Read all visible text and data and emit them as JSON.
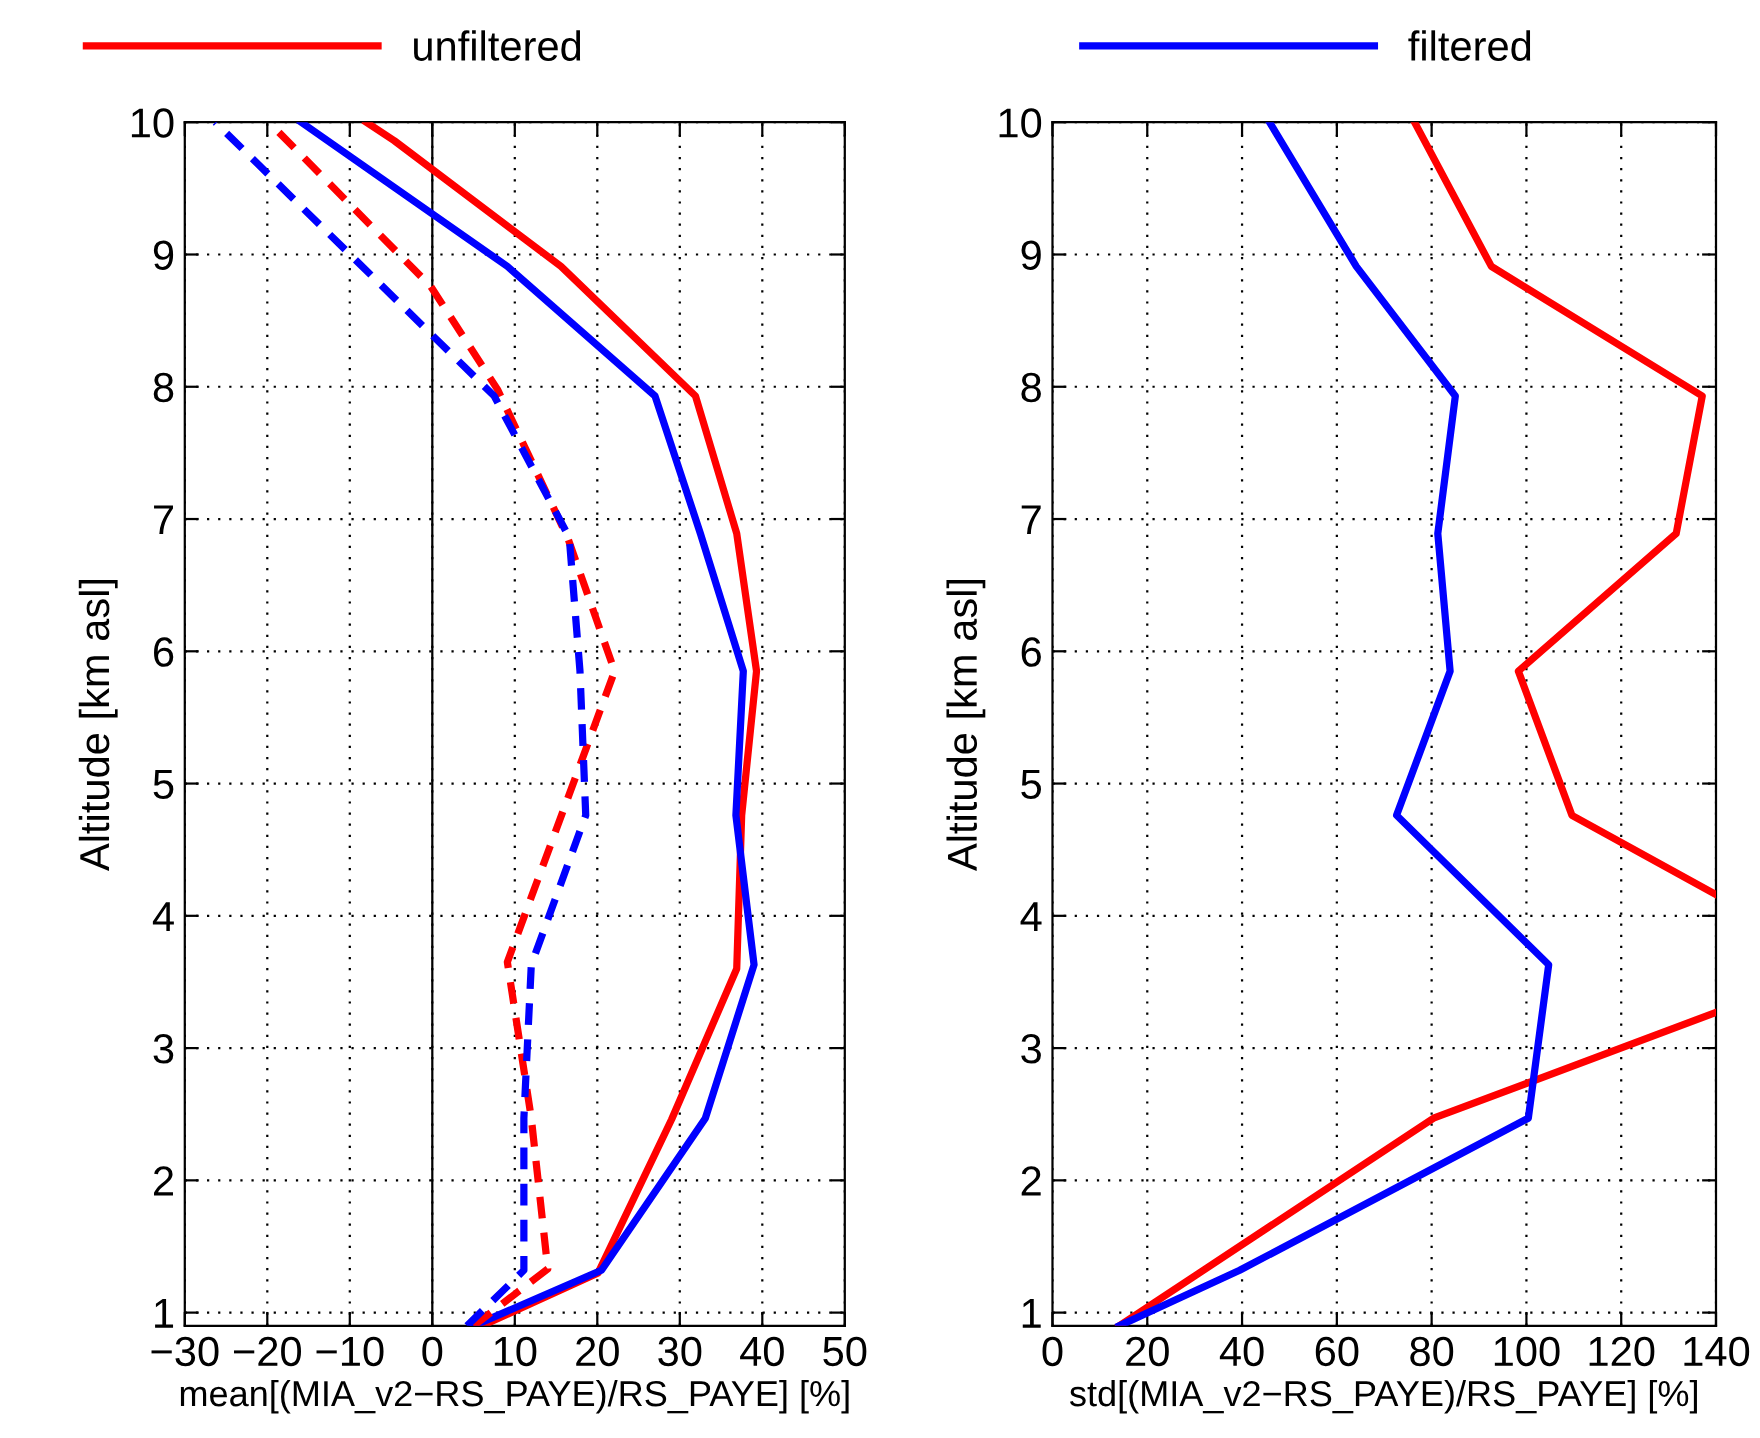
{
  "chart_data": [
    {
      "type": "line",
      "xlabel": "mean[(MIA_v2−RS_PAYE)/RS_PAYE] [%]",
      "ylabel": "Altitude [km asl]",
      "xlim": [
        -30,
        50
      ],
      "xticks": [
        {
          "value": -30,
          "label": "−30"
        },
        {
          "value": -20,
          "label": "−20"
        },
        {
          "value": -10,
          "label": "−10"
        },
        0,
        10,
        20,
        30,
        40,
        50
      ],
      "ylim": [
        0.9,
        10
      ],
      "yticks": [
        1,
        2,
        3,
        4,
        5,
        6,
        7,
        8,
        9,
        10
      ],
      "grid": true,
      "legend": "top",
      "line_style": "solid",
      "ref_lines": [
        {
          "axis": "x",
          "value": 0,
          "color": "#000000"
        }
      ],
      "series": [
        {
          "name": "unfiltered",
          "color": "#ff0000",
          "line_style": "solid",
          "x": [
            6,
            20.1,
            29.0,
            36.9,
            37.5,
            39.3,
            36.9,
            31.9,
            15.6,
            -4.6,
            -8.0
          ],
          "values": [
            0.9,
            1.3,
            2.46,
            3.6,
            4.76,
            5.85,
            6.89,
            7.93,
            8.91,
            9.86,
            10
          ]
        },
        {
          "name": "filtered",
          "color": "#0000ff",
          "line_style": "solid",
          "x": [
            5,
            20.5,
            33.1,
            39.0,
            36.8,
            37.7,
            32.5,
            27.0,
            9.1,
            -15.9
          ],
          "values": [
            0.9,
            1.32,
            2.47,
            3.63,
            4.76,
            5.85,
            6.89,
            7.93,
            8.91,
            10
          ]
        },
        {
          "color": "#ff0000",
          "line_style": "dashed",
          "x": [
            5.0,
            14.0,
            12.0,
            9.1,
            22.1,
            16.4,
            7.9,
            -0.2,
            -19.8
          ],
          "values": [
            0.9,
            1.33,
            2.47,
            3.65,
            5.85,
            6.86,
            7.98,
            8.76,
            10
          ]
        },
        {
          "color": "#0000ff",
          "line_style": "dashed",
          "x": [
            4.2,
            11.1,
            11.1,
            12.0,
            18.6,
            17.9,
            16.6,
            7.5,
            -26.3
          ],
          "values": [
            0.9,
            1.32,
            2.47,
            3.63,
            4.76,
            5.85,
            6.86,
            7.93,
            10
          ]
        }
      ]
    },
    {
      "type": "line",
      "xlabel": "std[(MIA_v2−RS_PAYE)/RS_PAYE] [%]",
      "ylabel": "Altitude [km asl]",
      "xlim": [
        0,
        140
      ],
      "xticks": [
        0,
        20,
        40,
        60,
        80,
        100,
        120,
        140
      ],
      "ylim": [
        0.9,
        10
      ],
      "yticks": [
        1,
        2,
        3,
        4,
        5,
        6,
        7,
        8,
        9,
        10
      ],
      "grid": true,
      "line_style": "solid",
      "series": [
        {
          "color": "#ff0000",
          "x": [
            14.1,
            80.4,
            140,
            null,
            140,
            109.6,
            98.3,
            131.6,
            137.1,
            92.6,
            76.4
          ],
          "values": [
            0.9,
            2.47,
            3.27,
            null,
            4.16,
            4.76,
            5.85,
            6.89,
            7.93,
            8.91,
            10
          ]
        },
        {
          "color": "#0000ff",
          "x": [
            14.1,
            39.5,
            100.4,
            104.7,
            72.6,
            83.9,
            81.3,
            85.0,
            64.1,
            45.8
          ],
          "values": [
            0.9,
            1.32,
            2.47,
            3.63,
            4.76,
            5.85,
            6.89,
            7.93,
            8.91,
            10
          ]
        }
      ]
    }
  ]
}
